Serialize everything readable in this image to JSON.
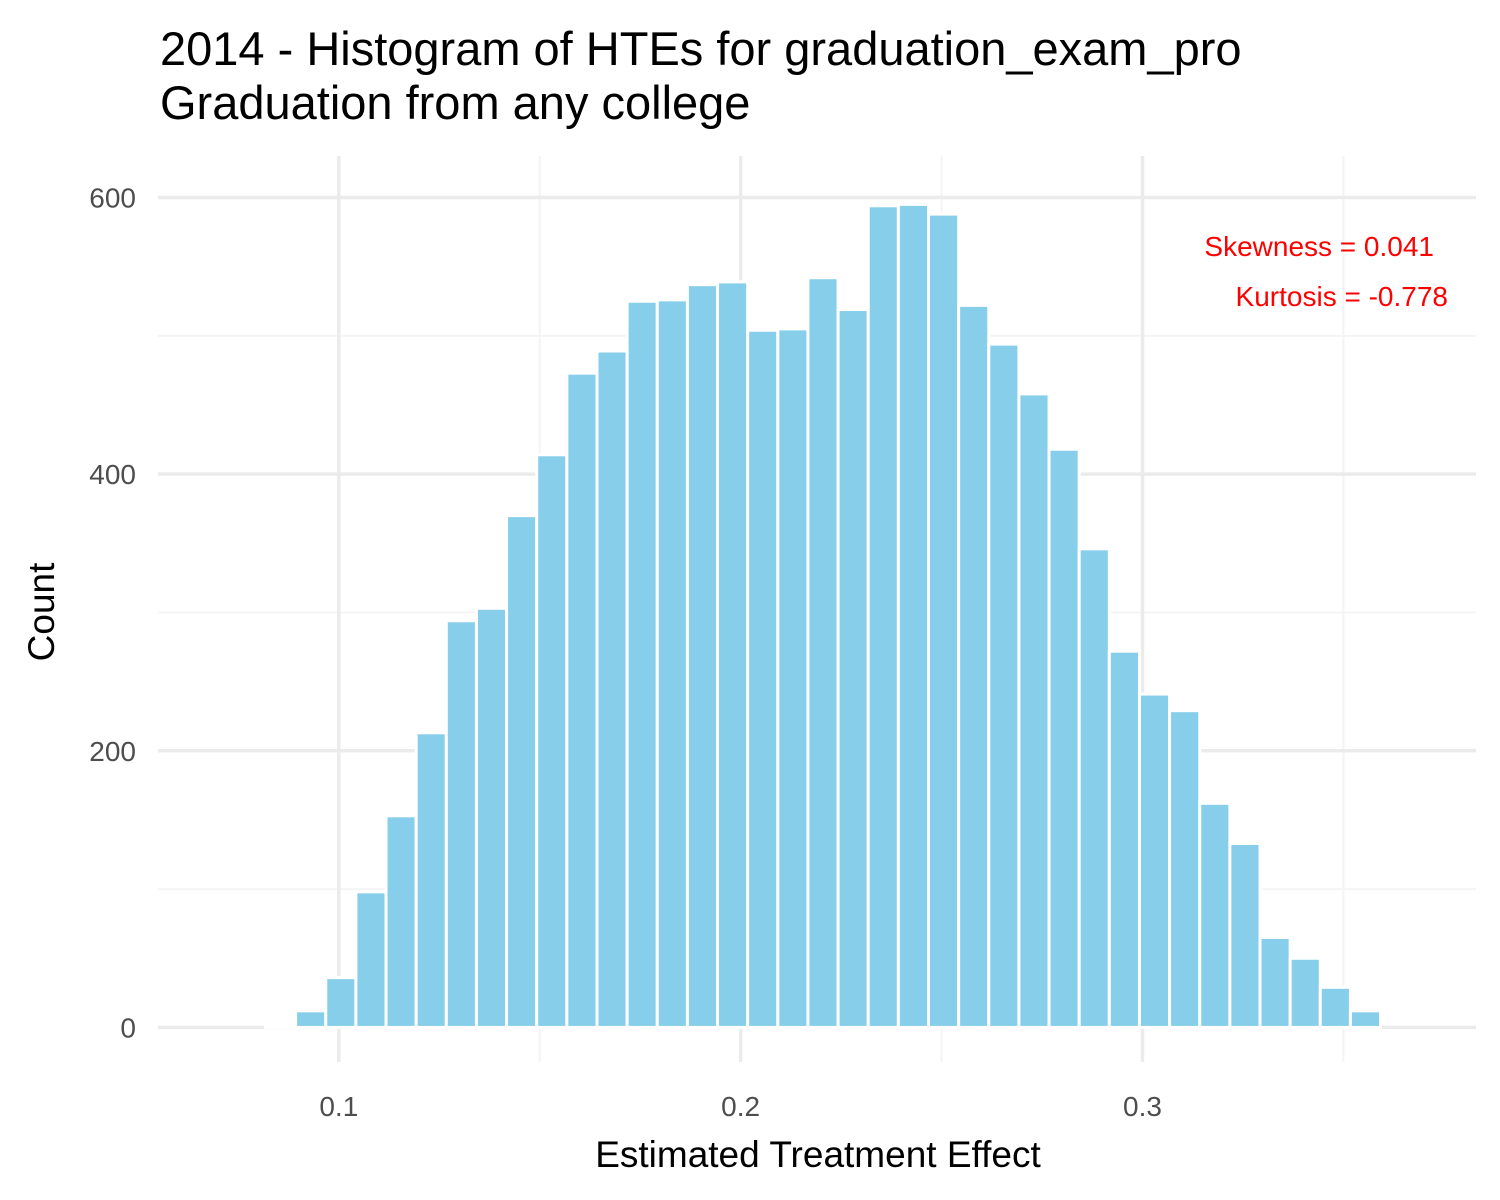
{
  "title": {
    "line1": "2014 - Histogram of HTEs for graduation_exam_pro",
    "line2": "Graduation from any college"
  },
  "colors": {
    "bar_fill": "#87ceeb",
    "bar_stroke": "#ffffff",
    "grid_major": "#ebebeb",
    "grid_minor": "#f4f4f4",
    "annotation": "#ff0000"
  },
  "annotations": {
    "skewness": "Skewness = 0.041",
    "kurtosis": "Kurtosis = -0.778"
  },
  "chart_data": {
    "type": "bar",
    "xlabel": "Estimated Treatment Effect",
    "ylabel": "Count",
    "xlim": [
      0.055,
      0.383
    ],
    "ylim": [
      -25,
      630
    ],
    "x_ticks": [
      0.1,
      0.2,
      0.3
    ],
    "x_tick_labels": [
      "0.1",
      "0.2",
      "0.3"
    ],
    "y_ticks": [
      0,
      200,
      400,
      600
    ],
    "y_tick_labels": [
      "0",
      "200",
      "400",
      "600"
    ],
    "grid": true,
    "bin_width": 0.0075,
    "bin_centers": [
      0.0705,
      0.078,
      0.0855,
      0.093,
      0.1005,
      0.108,
      0.1155,
      0.123,
      0.1305,
      0.138,
      0.1455,
      0.153,
      0.1605,
      0.168,
      0.1755,
      0.183,
      0.1905,
      0.198,
      0.2055,
      0.213,
      0.2205,
      0.228,
      0.2355,
      0.243,
      0.2505,
      0.258,
      0.2655,
      0.273,
      0.2805,
      0.288,
      0.2955,
      0.303,
      0.3105,
      0.318,
      0.3255,
      0.333,
      0.3405,
      0.348,
      0.3555
    ],
    "values": [
      0,
      0,
      2,
      12,
      36,
      98,
      153,
      213,
      294,
      303,
      370,
      414,
      473,
      489,
      525,
      526,
      537,
      539,
      504,
      505,
      542,
      519,
      594,
      595,
      588,
      522,
      494,
      458,
      418,
      346,
      272,
      241,
      229,
      162,
      133,
      65,
      50,
      29,
      12
    ]
  }
}
